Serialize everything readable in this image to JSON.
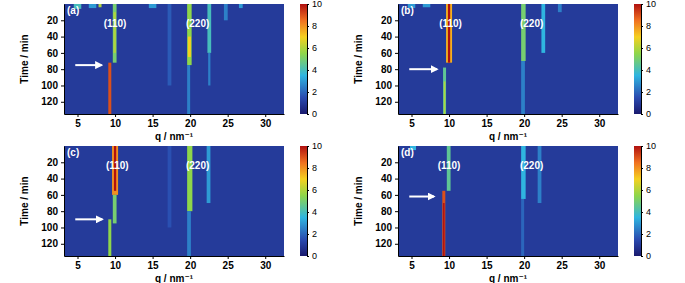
{
  "chart_data": [
    {
      "type": "heatmap",
      "title": "(a)",
      "x_label": "q / nm⁻¹",
      "y_label": "Time / min",
      "xlim": [
        3.2,
        32.5
      ],
      "xticks": [
        5,
        10,
        15,
        20,
        25,
        30
      ],
      "ylim": [
        0,
        135
      ],
      "yticks": [
        20,
        40,
        60,
        80,
        100,
        120
      ],
      "colorbar": {
        "range": [
          0,
          10
        ],
        "ticks": [
          0,
          2,
          4,
          6,
          8,
          10
        ]
      },
      "cells": [
        {
          "q": [
            3.2,
            32.5
          ],
          "time": [
            0,
            135
          ],
          "value": 1
        },
        {
          "q": [
            4.5,
            5.5
          ],
          "time": [
            0,
            6
          ],
          "value": 4
        },
        {
          "q": [
            6.5,
            7.5
          ],
          "time": [
            0,
            5
          ],
          "value": 3
        },
        {
          "q": [
            7.8,
            8.2
          ],
          "time": [
            0,
            4
          ],
          "value": 6
        },
        {
          "q": [
            14.5,
            15.5
          ],
          "time": [
            0,
            5
          ],
          "value": 3
        },
        {
          "q": [
            17,
            17.5
          ],
          "time": [
            0,
            100
          ],
          "value": 1.8
        },
        {
          "q": [
            9.7,
            10.2
          ],
          "time": [
            0,
            72
          ],
          "value": 5
        },
        {
          "q": [
            9.8,
            10.1
          ],
          "time": [
            10,
            60
          ],
          "value": 6
        },
        {
          "q": [
            9.1,
            9.5
          ],
          "time": [
            72,
            135
          ],
          "value": 9
        },
        {
          "q": [
            19.6,
            20.2
          ],
          "time": [
            0,
            75
          ],
          "value": 5.5
        },
        {
          "q": [
            19.7,
            20.1
          ],
          "time": [
            40,
            65
          ],
          "value": 7
        },
        {
          "q": [
            19.6,
            20.0
          ],
          "time": [
            75,
            135
          ],
          "value": 2.5
        },
        {
          "q": [
            22.3,
            22.8
          ],
          "time": [
            0,
            60
          ],
          "value": 4
        },
        {
          "q": [
            22.4,
            22.7
          ],
          "time": [
            60,
            100
          ],
          "value": 2.5
        },
        {
          "q": [
            24.5,
            25
          ],
          "time": [
            0,
            20
          ],
          "value": 2.5
        },
        {
          "q": [
            26.5,
            27
          ],
          "time": [
            0,
            5
          ],
          "value": 3
        }
      ],
      "annotations": [
        {
          "text": "(110)",
          "q": 10,
          "time": 28
        },
        {
          "text": "(220)",
          "q": 21,
          "time": 28
        }
      ],
      "arrow": {
        "time": 75,
        "q": [
          4.7,
          8.2
        ]
      }
    },
    {
      "type": "heatmap",
      "title": "(b)",
      "x_label": "q / nm⁻¹",
      "y_label": "Time / min",
      "xlim": [
        3.2,
        32.5
      ],
      "xticks": [
        5,
        10,
        15,
        20,
        25,
        30
      ],
      "ylim": [
        0,
        135
      ],
      "yticks": [
        20,
        40,
        60,
        80,
        100,
        120
      ],
      "colorbar": {
        "range": [
          0,
          10
        ],
        "ticks": [
          0,
          2,
          4,
          6,
          8,
          10
        ]
      },
      "cells": [
        {
          "q": [
            3.2,
            32.5
          ],
          "time": [
            0,
            135
          ],
          "value": 1
        },
        {
          "q": [
            4.5,
            5.5
          ],
          "time": [
            0,
            5
          ],
          "value": 3
        },
        {
          "q": [
            6.5,
            7.5
          ],
          "time": [
            0,
            4
          ],
          "value": 3
        },
        {
          "q": [
            9.6,
            10.4
          ],
          "time": [
            0,
            72
          ],
          "value": 7.5
        },
        {
          "q": [
            9.85,
            10.15
          ],
          "time": [
            0,
            72
          ],
          "value": 10
        },
        {
          "q": [
            9.2,
            9.6
          ],
          "time": [
            78,
            135
          ],
          "value": 4.5
        },
        {
          "q": [
            9.3,
            9.5
          ],
          "time": [
            95,
            135
          ],
          "value": 6
        },
        {
          "q": [
            19.6,
            20.2
          ],
          "time": [
            0,
            70
          ],
          "value": 5
        },
        {
          "q": [
            19.6,
            20.1
          ],
          "time": [
            70,
            135
          ],
          "value": 2.5
        },
        {
          "q": [
            22.3,
            22.8
          ],
          "time": [
            0,
            60
          ],
          "value": 3.5
        },
        {
          "q": [
            24.5,
            25
          ],
          "time": [
            0,
            10
          ],
          "value": 2.5
        }
      ],
      "annotations": [
        {
          "text": "(110)",
          "q": 10.2,
          "time": 28
        },
        {
          "text": "(220)",
          "q": 21,
          "time": 28
        }
      ],
      "arrow": {
        "time": 80,
        "q": [
          4.7,
          8.4
        ]
      }
    },
    {
      "type": "heatmap",
      "title": "(c)",
      "x_label": "q / nm⁻¹",
      "y_label": "Time / min",
      "xlim": [
        3.2,
        32.5
      ],
      "xticks": [
        5,
        10,
        15,
        20,
        25,
        30
      ],
      "ylim": [
        0,
        135
      ],
      "yticks": [
        20,
        40,
        60,
        80,
        100,
        120
      ],
      "colorbar": {
        "range": [
          0,
          10
        ],
        "ticks": [
          0,
          2,
          4,
          6,
          8,
          10
        ]
      },
      "cells": [
        {
          "q": [
            3.2,
            32.5
          ],
          "time": [
            0,
            135
          ],
          "value": 1
        },
        {
          "q": [
            17,
            17.5
          ],
          "time": [
            0,
            100
          ],
          "value": 1.6
        },
        {
          "q": [
            9.6,
            10.4
          ],
          "time": [
            0,
            60
          ],
          "value": 8
        },
        {
          "q": [
            9.85,
            10.15
          ],
          "time": [
            0,
            55
          ],
          "value": 10
        },
        {
          "q": [
            9.7,
            10.2
          ],
          "time": [
            60,
            95
          ],
          "value": 5
        },
        {
          "q": [
            9.1,
            9.5
          ],
          "time": [
            90,
            135
          ],
          "value": 5.5
        },
        {
          "q": [
            19.6,
            20.3
          ],
          "time": [
            0,
            80
          ],
          "value": 5.5
        },
        {
          "q": [
            19.6,
            20.1
          ],
          "time": [
            80,
            135
          ],
          "value": 2.5
        },
        {
          "q": [
            22.2,
            22.7
          ],
          "time": [
            0,
            70
          ],
          "value": 3
        }
      ],
      "annotations": [
        {
          "text": "(110)",
          "q": 10.3,
          "time": 28
        },
        {
          "text": "(220)",
          "q": 21,
          "time": 28
        }
      ],
      "arrow": {
        "time": 90,
        "q": [
          4.7,
          8.3
        ]
      }
    },
    {
      "type": "heatmap",
      "title": "(d)",
      "x_label": "q / nm⁻¹",
      "y_label": "Time / min",
      "xlim": [
        3.2,
        32.5
      ],
      "xticks": [
        5,
        10,
        15,
        20,
        25,
        30
      ],
      "ylim": [
        0,
        135
      ],
      "yticks": [
        20,
        40,
        60,
        80,
        100,
        120
      ],
      "colorbar": {
        "range": [
          0,
          10
        ],
        "ticks": [
          0,
          2,
          4,
          6,
          8,
          10
        ]
      },
      "cells": [
        {
          "q": [
            3.2,
            32.5
          ],
          "time": [
            0,
            135
          ],
          "value": 1
        },
        {
          "q": [
            4.8,
            5.6
          ],
          "time": [
            0,
            5
          ],
          "value": 3.5
        },
        {
          "q": [
            9.7,
            10.2
          ],
          "time": [
            0,
            55
          ],
          "value": 4.5
        },
        {
          "q": [
            9.1,
            9.5
          ],
          "time": [
            55,
            135
          ],
          "value": 9
        },
        {
          "q": [
            9.2,
            9.4
          ],
          "time": [
            70,
            135
          ],
          "value": 10
        },
        {
          "q": [
            19.6,
            20.2
          ],
          "time": [
            0,
            65
          ],
          "value": 3.5
        },
        {
          "q": [
            21.8,
            22.3
          ],
          "time": [
            0,
            70
          ],
          "value": 2.5
        },
        {
          "q": [
            19.6,
            20.0
          ],
          "time": [
            65,
            135
          ],
          "value": 2
        }
      ],
      "annotations": [
        {
          "text": "(110)",
          "q": 10,
          "time": 28
        },
        {
          "text": "(220)",
          "q": 21,
          "time": 28
        }
      ],
      "arrow": {
        "time": 62,
        "q": [
          4.7,
          8.0
        ]
      }
    }
  ]
}
